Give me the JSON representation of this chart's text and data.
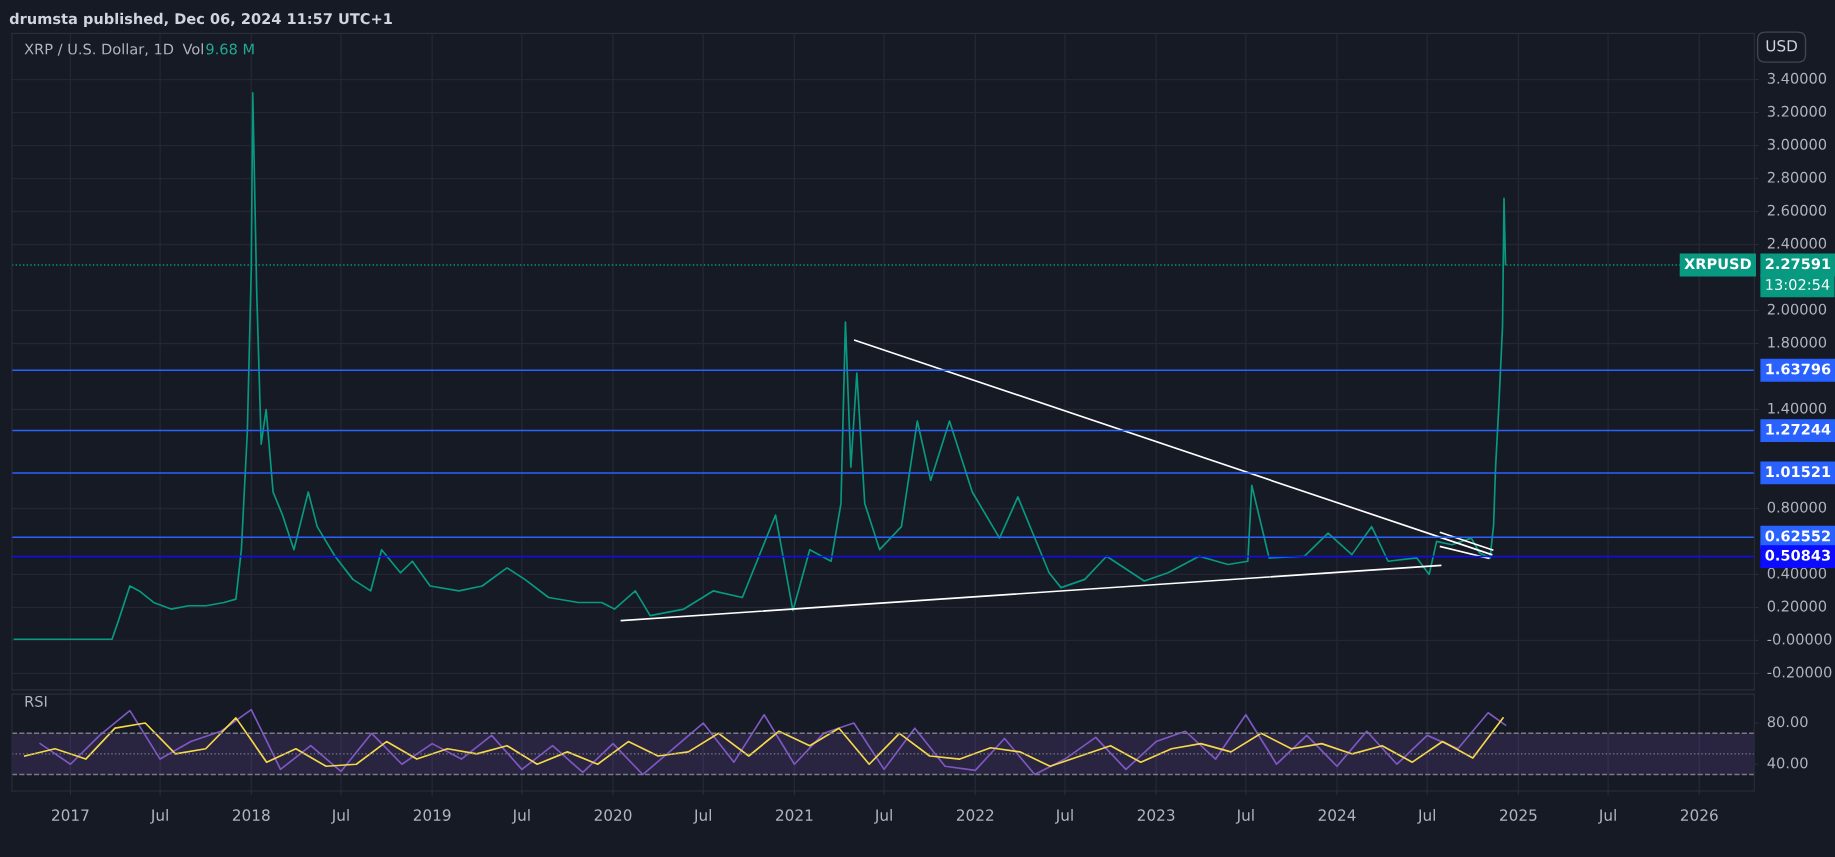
{
  "chart_data": [
    {
      "type": "line",
      "title": "XRP / U.S. Dollar, 1D",
      "annotations": [
        "drumsta published, Dec 06, 2024 11:57 UTC+1",
        "Vol",
        "9.68 M",
        "USD",
        "XRPUSD",
        "13:02:54"
      ],
      "xlim": [
        "2016-09-05",
        "2026-04-22"
      ],
      "xticks": [
        {
          "value": "2017-01-01",
          "label": null
        },
        {
          "value": "2017-07-01",
          "label": null
        },
        {
          "value": "2018-01-01",
          "label": null
        },
        {
          "value": "2018-07-01",
          "label": null
        },
        {
          "value": "2019-01-01",
          "label": null
        },
        {
          "value": "2019-07-01",
          "label": null
        },
        {
          "value": "2020-01-01",
          "label": null
        },
        {
          "value": "2020-07-01",
          "label": null
        },
        {
          "value": "2021-01-01",
          "label": null
        },
        {
          "value": "2021-07-01",
          "label": null
        },
        {
          "value": "2022-01-01",
          "label": null
        },
        {
          "value": "2022-07-01",
          "label": null
        },
        {
          "value": "2023-01-01",
          "label": null
        },
        {
          "value": "2023-07-01",
          "label": null
        },
        {
          "value": "2024-01-01",
          "label": null
        },
        {
          "value": "2024-07-01",
          "label": null
        },
        {
          "value": "2025-01-01",
          "label": null
        },
        {
          "value": "2025-07-01",
          "label": null
        },
        {
          "value": "2026-01-01",
          "label": null
        }
      ],
      "ylim": [
        -0.3,
        3.68
      ],
      "yticks": [
        {
          "value": 3.4,
          "label": "3.40000"
        },
        {
          "value": 3.2,
          "label": "3.20000"
        },
        {
          "value": 3.0,
          "label": "3.00000"
        },
        {
          "value": 2.8,
          "label": "2.80000"
        },
        {
          "value": 2.6,
          "label": "2.60000"
        },
        {
          "value": 2.4,
          "label": "2.40000"
        },
        {
          "value": 2.0,
          "label": "2.00000"
        },
        {
          "value": 1.8,
          "label": "1.80000"
        },
        {
          "value": 1.4,
          "label": "1.40000"
        },
        {
          "value": 0.8,
          "label": "0.80000"
        },
        {
          "value": 0.4,
          "label": "0.40000"
        },
        {
          "value": 0.2,
          "label": "0.20000"
        },
        {
          "value": 0,
          "label": "-0.00000"
        },
        {
          "value": -0.2,
          "label": "-0.20000"
        }
      ],
      "tick_labels": "y",
      "grid": true,
      "legend": false,
      "ref_lines": [
        {
          "axis": "y",
          "value": 2.27591,
          "label": "2.27591",
          "color": "#089981",
          "line_style": "dotted"
        },
        {
          "axis": "y",
          "value": 1.63796,
          "label": "1.63796",
          "color": "#2962ff",
          "line_style": "solid"
        },
        {
          "axis": "y",
          "value": 1.27244,
          "label": "1.27244",
          "color": "#2962ff",
          "line_style": "solid"
        },
        {
          "axis": "y",
          "value": 1.01521,
          "label": "1.01521",
          "color": "#2962ff",
          "line_style": "solid"
        },
        {
          "axis": "y",
          "value": 0.62552,
          "label": "0.62552",
          "color": "#2962ff",
          "line_style": "solid"
        },
        {
          "axis": "y",
          "value": 0.50843,
          "label": "0.50843",
          "color": "#0c0cff",
          "line_style": "solid"
        }
      ],
      "series": [
        {
          "color": "#089981",
          "x": [
            "2016-09-10",
            "2017-03-26",
            "2017-04-08",
            "2017-05-01",
            "2017-05-20",
            "2017-06-18",
            "2017-07-23",
            "2017-08-28",
            "2017-10-02",
            "2017-11-07",
            "2017-12-01",
            "2017-12-12",
            "2017-12-24",
            "2018-01-01",
            "2018-01-04",
            "2018-01-12",
            "2018-01-21",
            "2018-01-31",
            "2018-02-14",
            "2018-03-05",
            "2018-03-28",
            "2018-04-26",
            "2018-05-14",
            "2018-06-19",
            "2018-07-25",
            "2018-08-30",
            "2018-09-21",
            "2018-10-29",
            "2018-11-22",
            "2018-12-28",
            "2019-02-24",
            "2019-04-12",
            "2019-06-01",
            "2019-07-07",
            "2019-08-24",
            "2019-10-23",
            "2019-12-09",
            "2020-01-04",
            "2020-02-15",
            "2020-03-16",
            "2020-05-23",
            "2020-07-21",
            "2020-09-18",
            "2020-11-24",
            "2020-12-29",
            "2021-02-01",
            "2021-03-16",
            "2021-04-05",
            "2021-04-14",
            "2021-04-25",
            "2021-05-07",
            "2021-05-23",
            "2021-06-22",
            "2021-08-05",
            "2021-09-06",
            "2021-10-03",
            "2021-11-10",
            "2021-12-26",
            "2022-02-19",
            "2022-03-28",
            "2022-05-30",
            "2022-06-23",
            "2022-08-10",
            "2022-09-23",
            "2022-12-08",
            "2023-01-25",
            "2023-03-29",
            "2023-05-26",
            "2023-07-05",
            "2023-07-13",
            "2023-08-17",
            "2023-10-27",
            "2023-12-14",
            "2024-01-31",
            "2024-03-11",
            "2024-04-13",
            "2024-06-10",
            "2024-07-05",
            "2024-07-20",
            "2024-08-20",
            "2024-09-28",
            "2024-10-15",
            "2024-11-05",
            "2024-11-12",
            "2024-11-16",
            "2024-11-23",
            "2024-11-30",
            "2024-12-03",
            "2024-12-06"
          ],
          "values": [
            0.007,
            0.007,
            0.12,
            0.33,
            0.3,
            0.23,
            0.19,
            0.21,
            0.21,
            0.23,
            0.25,
            0.55,
            1.26,
            2.25,
            3.32,
            2.11,
            1.19,
            1.4,
            0.9,
            0.76,
            0.55,
            0.9,
            0.69,
            0.51,
            0.37,
            0.3,
            0.55,
            0.41,
            0.48,
            0.33,
            0.3,
            0.33,
            0.44,
            0.37,
            0.26,
            0.23,
            0.23,
            0.19,
            0.3,
            0.15,
            0.19,
            0.3,
            0.26,
            0.76,
            0.18,
            0.55,
            0.48,
            0.83,
            1.93,
            1.05,
            1.62,
            0.83,
            0.55,
            0.69,
            1.33,
            0.97,
            1.33,
            0.9,
            0.62,
            0.87,
            0.41,
            0.32,
            0.37,
            0.51,
            0.36,
            0.41,
            0.51,
            0.46,
            0.48,
            0.94,
            0.5,
            0.51,
            0.65,
            0.52,
            0.69,
            0.48,
            0.5,
            0.4,
            0.6,
            0.58,
            0.62,
            0.53,
            0.5,
            0.7,
            1.05,
            1.45,
            1.9,
            2.68,
            2.28
          ]
        },
        {
          "color": "#ffffff",
          "x": [
            "2021-05-03",
            "2024-11-08"
          ],
          "values": [
            1.82,
            0.52
          ]
        },
        {
          "color": "#ffffff",
          "x": [
            "2020-01-18",
            "2024-07-28"
          ],
          "values": [
            0.12,
            0.455
          ]
        },
        {
          "color": "#ffffff",
          "x": [
            "2024-07-28",
            "2024-11-10"
          ],
          "values": [
            0.654,
            0.548
          ]
        },
        {
          "color": "#ffffff",
          "x": [
            "2024-07-28",
            "2024-11-02"
          ],
          "values": [
            0.569,
            0.498
          ]
        }
      ]
    },
    {
      "type": "line",
      "title": "RSI",
      "xlim": [
        "2016-09-05",
        "2026-04-22"
      ],
      "xticks": [
        {
          "value": "2017-01-01",
          "label": "2017"
        },
        {
          "value": "2017-07-01",
          "label": "Jul"
        },
        {
          "value": "2018-01-01",
          "label": "2018"
        },
        {
          "value": "2018-07-01",
          "label": "Jul"
        },
        {
          "value": "2019-01-01",
          "label": "2019"
        },
        {
          "value": "2019-07-01",
          "label": "Jul"
        },
        {
          "value": "2020-01-01",
          "label": "2020"
        },
        {
          "value": "2020-07-01",
          "label": "Jul"
        },
        {
          "value": "2021-01-01",
          "label": "2021"
        },
        {
          "value": "2021-07-01",
          "label": "Jul"
        },
        {
          "value": "2022-01-01",
          "label": "2022"
        },
        {
          "value": "2022-07-01",
          "label": "Jul"
        },
        {
          "value": "2023-01-01",
          "label": "2023"
        },
        {
          "value": "2023-07-01",
          "label": "Jul"
        },
        {
          "value": "2024-01-01",
          "label": "2024"
        },
        {
          "value": "2024-07-01",
          "label": "Jul"
        },
        {
          "value": "2025-01-01",
          "label": "2025"
        },
        {
          "value": "2025-07-01",
          "label": "Jul"
        },
        {
          "value": "2026-01-01",
          "label": "2026"
        }
      ],
      "ylim": [
        14,
        108
      ],
      "yticks": [
        {
          "value": 40,
          "label": "40.00"
        },
        {
          "value": 80,
          "label": "80.00"
        }
      ],
      "grid": "x",
      "legend": false,
      "bands": [
        {
          "axis": "y",
          "from": 30,
          "to": 70,
          "color": "#7e57c2"
        }
      ],
      "ref_lines": [
        {
          "axis": "y",
          "value": 70,
          "color": "#787b86",
          "line_style": "dashed"
        },
        {
          "axis": "y",
          "value": 50,
          "color": "#787b86",
          "line_style": "dotted"
        },
        {
          "axis": "y",
          "value": 30,
          "color": "#787b86",
          "line_style": "dashed"
        }
      ],
      "series": [
        {
          "color": "#7e57c2",
          "x": [
            "2016-11-01",
            "2017-01-01",
            "2017-03-01",
            "2017-05-01",
            "2017-07-01",
            "2017-09-01",
            "2017-11-01",
            "2018-01-01",
            "2018-03-01",
            "2018-05-01",
            "2018-07-01",
            "2018-09-01",
            "2018-11-01",
            "2019-01-01",
            "2019-03-01",
            "2019-05-01",
            "2019-07-01",
            "2019-09-01",
            "2019-11-01",
            "2020-01-01",
            "2020-03-01",
            "2020-05-01",
            "2020-07-01",
            "2020-09-01",
            "2020-11-01",
            "2021-01-01",
            "2021-03-01",
            "2021-05-01",
            "2021-07-01",
            "2021-09-01",
            "2021-11-01",
            "2022-01-01",
            "2022-03-01",
            "2022-05-01",
            "2022-07-01",
            "2022-09-01",
            "2022-11-01",
            "2023-01-01",
            "2023-03-01",
            "2023-05-01",
            "2023-07-01",
            "2023-09-01",
            "2023-11-01",
            "2024-01-01",
            "2024-03-01",
            "2024-05-01",
            "2024-07-01",
            "2024-09-01",
            "2024-11-01",
            "2024-12-06"
          ],
          "values": [
            60,
            40,
            68,
            92,
            45,
            62,
            72,
            93,
            35,
            58,
            33,
            70,
            40,
            60,
            45,
            68,
            35,
            58,
            32,
            60,
            30,
            55,
            80,
            42,
            88,
            40,
            70,
            80,
            35,
            75,
            38,
            34,
            65,
            30,
            45,
            66,
            35,
            62,
            72,
            45,
            88,
            40,
            68,
            38,
            72,
            40,
            68,
            55,
            90,
            78
          ]
        },
        {
          "color": "#f5d74a",
          "x": [
            "2016-10-01",
            "2016-12-01",
            "2017-02-01",
            "2017-04-01",
            "2017-06-01",
            "2017-08-01",
            "2017-10-01",
            "2017-12-01",
            "2018-02-01",
            "2018-04-01",
            "2018-06-01",
            "2018-08-01",
            "2018-10-01",
            "2018-12-01",
            "2019-02-01",
            "2019-04-01",
            "2019-06-01",
            "2019-08-01",
            "2019-10-01",
            "2019-12-01",
            "2020-02-01",
            "2020-04-01",
            "2020-06-01",
            "2020-08-01",
            "2020-10-01",
            "2020-12-01",
            "2021-02-01",
            "2021-04-01",
            "2021-06-01",
            "2021-08-01",
            "2021-10-01",
            "2021-12-01",
            "2022-02-01",
            "2022-04-01",
            "2022-06-01",
            "2022-08-01",
            "2022-10-01",
            "2022-12-01",
            "2023-02-01",
            "2023-04-01",
            "2023-06-01",
            "2023-08-01",
            "2023-10-01",
            "2023-12-01",
            "2024-02-01",
            "2024-04-01",
            "2024-06-01",
            "2024-08-01",
            "2024-10-01",
            "2024-12-01"
          ],
          "values": [
            48,
            55,
            45,
            75,
            80,
            50,
            55,
            85,
            42,
            55,
            38,
            40,
            62,
            45,
            55,
            50,
            58,
            40,
            52,
            40,
            62,
            48,
            52,
            70,
            48,
            72,
            58,
            75,
            40,
            70,
            48,
            45,
            56,
            52,
            38,
            48,
            58,
            42,
            55,
            60,
            52,
            70,
            55,
            60,
            50,
            58,
            42,
            62,
            46,
            85
          ]
        }
      ]
    }
  ]
}
